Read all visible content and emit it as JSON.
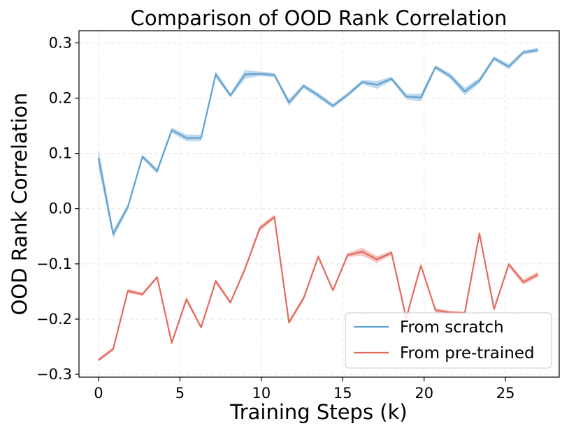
{
  "chart_data": {
    "type": "line",
    "title": "Comparison of OOD Rank Correlation",
    "xlabel": "Training Steps (k)",
    "ylabel": "OOD Rank Correlation",
    "xlim": [
      -1.2,
      28.3
    ],
    "ylim": [
      -0.305,
      0.322
    ],
    "x_ticks": [
      0,
      5,
      10,
      15,
      20,
      25
    ],
    "x_tick_labels": [
      "0",
      "5",
      "10",
      "15",
      "20",
      "25"
    ],
    "y_ticks": [
      -0.3,
      -0.2,
      -0.1,
      0.0,
      0.1,
      0.2,
      0.3
    ],
    "y_tick_labels": [
      "−0.3",
      "−0.2",
      "−0.1",
      "0.0",
      "0.1",
      "0.2",
      "0.3"
    ],
    "grid": true,
    "legend_position": "lower-right",
    "x": [
      0,
      0.9,
      1.8,
      2.7,
      3.6,
      4.5,
      5.4,
      6.3,
      7.2,
      8.1,
      9,
      9.9,
      10.8,
      11.7,
      12.6,
      13.5,
      14.4,
      15.3,
      16.2,
      17.1,
      18,
      18.9,
      19.8,
      20.7,
      21.6,
      22.5,
      23.4,
      24.3,
      25.2,
      26.1,
      27
    ],
    "series": [
      {
        "name": "From scratch",
        "color": "#5fa2d1",
        "band_color": "#a9cbe6",
        "values": [
          0.092,
          -0.046,
          0.003,
          0.094,
          0.068,
          0.142,
          0.128,
          0.128,
          0.243,
          0.205,
          0.243,
          0.244,
          0.242,
          0.192,
          0.222,
          0.205,
          0.186,
          0.206,
          0.229,
          0.224,
          0.235,
          0.203,
          0.201,
          0.256,
          0.24,
          0.212,
          0.232,
          0.272,
          0.257,
          0.283,
          0.287
        ],
        "band": [
          0.018,
          0.008,
          0.005,
          0.004,
          0.005,
          0.005,
          0.006,
          0.006,
          0.006,
          0.004,
          0.008,
          0.004,
          0.004,
          0.006,
          0.004,
          0.005,
          0.004,
          0.004,
          0.004,
          0.007,
          0.004,
          0.005,
          0.007,
          0.004,
          0.005,
          0.007,
          0.005,
          0.004,
          0.005,
          0.004,
          0.004
        ]
      },
      {
        "name": "From pre-trained",
        "color": "#e46a5d",
        "band_color": "#f2b0a9",
        "values": [
          -0.274,
          -0.254,
          -0.149,
          -0.155,
          -0.124,
          -0.243,
          -0.164,
          -0.215,
          -0.131,
          -0.17,
          -0.109,
          -0.036,
          -0.015,
          -0.206,
          -0.162,
          -0.087,
          -0.148,
          -0.084,
          -0.078,
          -0.092,
          -0.08,
          -0.198,
          -0.103,
          -0.184,
          -0.188,
          -0.189,
          -0.045,
          -0.182,
          -0.101,
          -0.133,
          -0.119
        ],
        "band": [
          0.003,
          0.003,
          0.004,
          0.003,
          0.003,
          0.003,
          0.005,
          0.003,
          0.004,
          0.003,
          0.004,
          0.005,
          0.004,
          0.004,
          0.004,
          0.004,
          0.003,
          0.004,
          0.007,
          0.006,
          0.004,
          0.003,
          0.003,
          0.004,
          0.003,
          0.003,
          0.005,
          0.003,
          0.004,
          0.005,
          0.005
        ]
      }
    ]
  }
}
